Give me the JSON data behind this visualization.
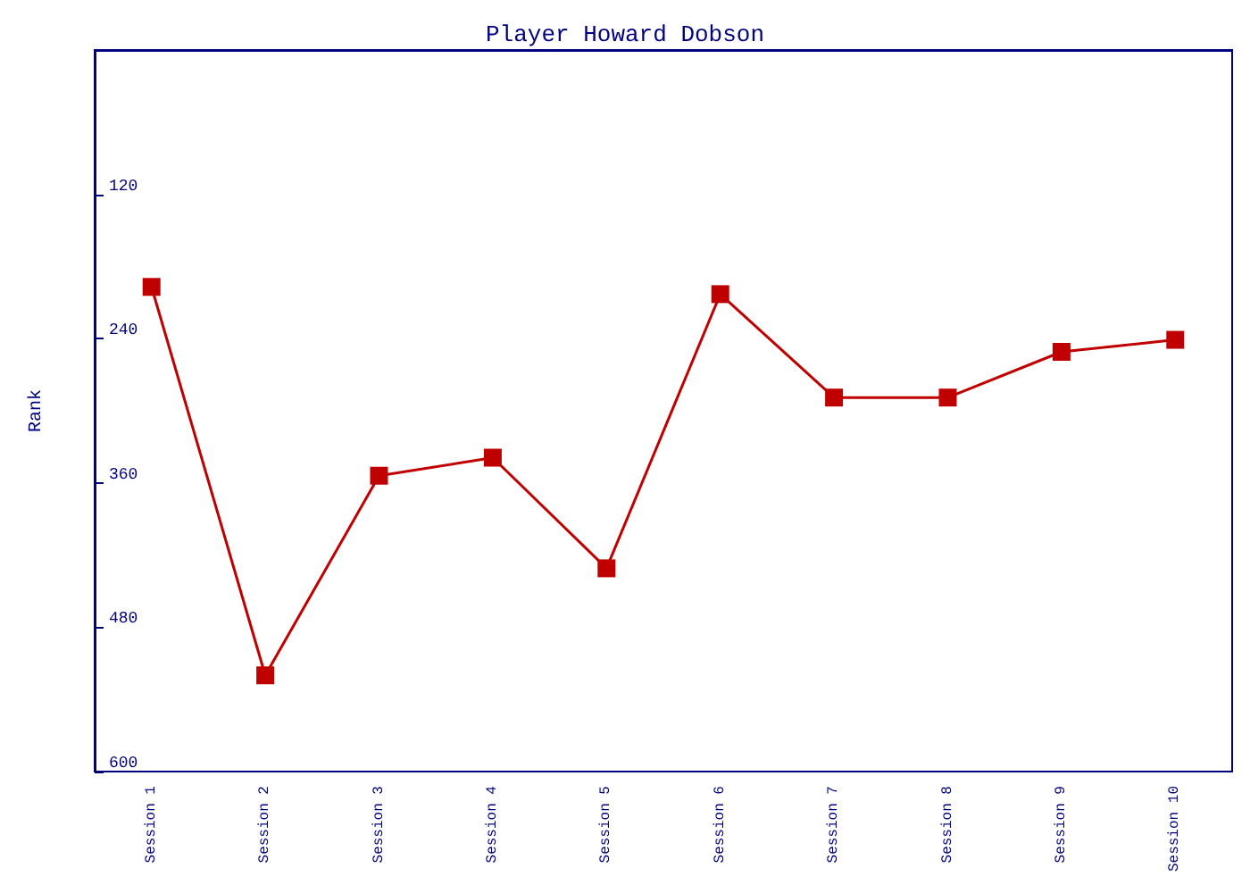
{
  "chart_data": {
    "type": "line",
    "title": "Player Howard Dobson",
    "ylabel": "Rank",
    "categories": [
      "Session 1",
      "Session 2",
      "Session 3",
      "Session 4",
      "Session 5",
      "Session 6",
      "Session 7",
      "Session 8",
      "Session 9",
      "Session 10"
    ],
    "series": [
      {
        "color": "#c00000",
        "values": [
          197,
          520,
          354,
          339,
          431,
          203,
          289,
          289,
          251,
          241
        ]
      }
    ],
    "ylim": [
      600,
      0
    ],
    "yticks": [
      {
        "value": 0,
        "label": null
      },
      120,
      240,
      360,
      480,
      600
    ],
    "grid": false,
    "marker": "square",
    "line_style": "solid"
  }
}
